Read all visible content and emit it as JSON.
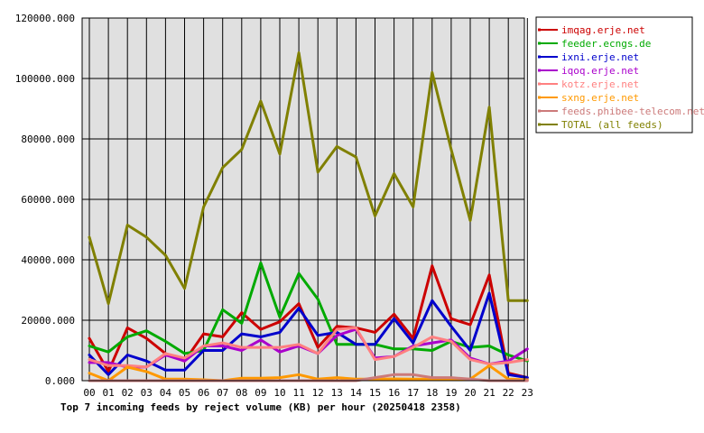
{
  "chart_data": {
    "type": "line",
    "title": "Top 7 incoming feeds by reject volume (KB) per hour (20250418 2358)",
    "categories": [
      "00",
      "01",
      "02",
      "03",
      "04",
      "05",
      "06",
      "07",
      "08",
      "09",
      "10",
      "11",
      "12",
      "13",
      "14",
      "15",
      "16",
      "17",
      "18",
      "19",
      "20",
      "21",
      "22",
      "23"
    ],
    "ylim": [
      0,
      120000
    ],
    "yticks": [
      "0.000",
      "20000.000",
      "40000.000",
      "60000.000",
      "80000.000",
      "100000.000",
      "120000.000"
    ],
    "grid": true,
    "legend_position": "right",
    "series": [
      {
        "name": "imqag.erje.net",
        "color": "#cc0000",
        "values": [
          14000,
          3000,
          17500,
          14000,
          9000,
          6500,
          15500,
          14500,
          22500,
          17000,
          19500,
          25500,
          11000,
          18000,
          17500,
          16000,
          22000,
          14000,
          38000,
          20500,
          18500,
          35000,
          2500,
          1000
        ]
      },
      {
        "name": "feeder.ecngs.de",
        "color": "#00aa00",
        "values": [
          11500,
          9500,
          14500,
          16500,
          13000,
          9000,
          10000,
          23500,
          19000,
          39000,
          21000,
          35500,
          27000,
          12000,
          12000,
          12000,
          10500,
          10500,
          10000,
          13000,
          11000,
          11500,
          8500,
          6500
        ]
      },
      {
        "name": "ixni.erje.net",
        "color": "#0000cc",
        "values": [
          8500,
          2000,
          8500,
          6500,
          3500,
          3500,
          10000,
          10000,
          15500,
          14500,
          16000,
          24000,
          15000,
          16000,
          12000,
          12000,
          20500,
          12500,
          26500,
          18000,
          10000,
          29000,
          2000,
          1000
        ]
      },
      {
        "name": "iqoq.erje.net",
        "color": "#aa00cc",
        "values": [
          6000,
          6000,
          4500,
          4500,
          8500,
          6500,
          11500,
          11500,
          10000,
          13500,
          9500,
          11500,
          9000,
          15000,
          17000,
          7500,
          8000,
          11500,
          12500,
          13500,
          7500,
          5500,
          6500,
          10500
        ]
      },
      {
        "name": "kotz.erje.net",
        "color": "#ff8080",
        "values": [
          7000,
          5000,
          5000,
          4500,
          9000,
          7500,
          11500,
          12500,
          11000,
          11000,
          11000,
          12000,
          9000,
          17000,
          17500,
          7000,
          8000,
          11000,
          14500,
          13000,
          7000,
          5500,
          6000,
          7000
        ]
      },
      {
        "name": "sxng.erje.net",
        "color": "#ff9900",
        "values": [
          2500,
          0,
          4500,
          3000,
          500,
          500,
          300,
          0,
          800,
          800,
          1000,
          2000,
          500,
          1000,
          500,
          500,
          600,
          500,
          500,
          500,
          500,
          5000,
          500,
          300
        ]
      },
      {
        "name": "feeds.phibee-telecom.net",
        "color": "#cc7a7a",
        "values": [
          0,
          0,
          0,
          0,
          0,
          0,
          0,
          0,
          0,
          0,
          0,
          0,
          0,
          0,
          0,
          1000,
          2000,
          2000,
          1000,
          1000,
          500,
          0,
          0,
          0
        ]
      },
      {
        "name": "TOTAL (all feeds)",
        "color": "#808000",
        "values": [
          47500,
          25500,
          51500,
          47500,
          41500,
          30500,
          57500,
          70500,
          76500,
          92500,
          75000,
          108500,
          69000,
          77500,
          74000,
          54500,
          68500,
          57500,
          102000,
          76500,
          53000,
          90500,
          26500,
          26500
        ]
      }
    ]
  }
}
